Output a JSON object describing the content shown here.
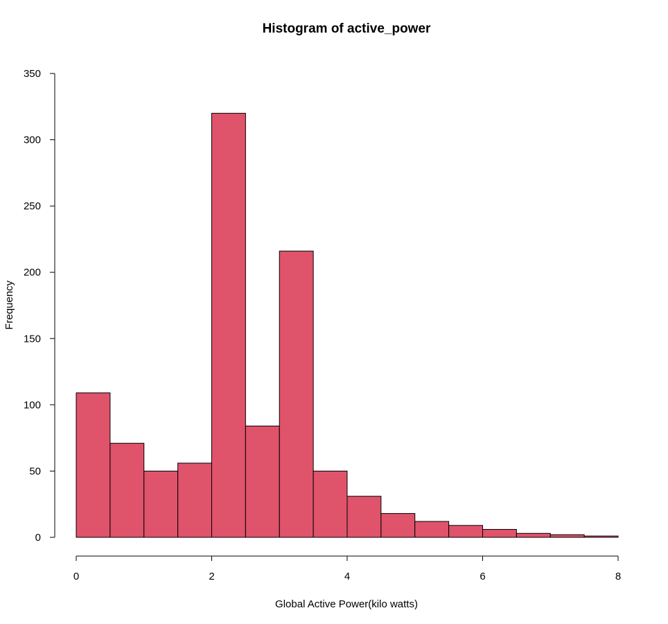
{
  "chart_data": {
    "type": "bar",
    "title": "Histogram of active_power",
    "xlabel": "Global Active Power(kilo watts)",
    "ylabel": "Frequency",
    "bar_color": "#DF536B",
    "bar_edge_color": "#000000",
    "xlim": [
      0,
      8
    ],
    "ylim": [
      0,
      350
    ],
    "x_ticks": [
      0,
      2,
      4,
      6,
      8
    ],
    "y_ticks": [
      0,
      50,
      100,
      150,
      200,
      250,
      300,
      350
    ],
    "bins": [
      {
        "start": 0.0,
        "end": 0.5,
        "value": 109
      },
      {
        "start": 0.5,
        "end": 1.0,
        "value": 71
      },
      {
        "start": 1.0,
        "end": 1.5,
        "value": 50
      },
      {
        "start": 1.5,
        "end": 2.0,
        "value": 56
      },
      {
        "start": 2.0,
        "end": 2.5,
        "value": 320
      },
      {
        "start": 2.5,
        "end": 3.0,
        "value": 84
      },
      {
        "start": 3.0,
        "end": 3.5,
        "value": 216
      },
      {
        "start": 3.5,
        "end": 4.0,
        "value": 50
      },
      {
        "start": 4.0,
        "end": 4.5,
        "value": 31
      },
      {
        "start": 4.5,
        "end": 5.0,
        "value": 18
      },
      {
        "start": 5.0,
        "end": 5.5,
        "value": 12
      },
      {
        "start": 5.5,
        "end": 6.0,
        "value": 9
      },
      {
        "start": 6.0,
        "end": 6.5,
        "value": 6
      },
      {
        "start": 6.5,
        "end": 7.0,
        "value": 3
      },
      {
        "start": 7.0,
        "end": 7.5,
        "value": 2
      },
      {
        "start": 7.5,
        "end": 8.0,
        "value": 1
      }
    ],
    "grid": false,
    "legend": "none"
  }
}
